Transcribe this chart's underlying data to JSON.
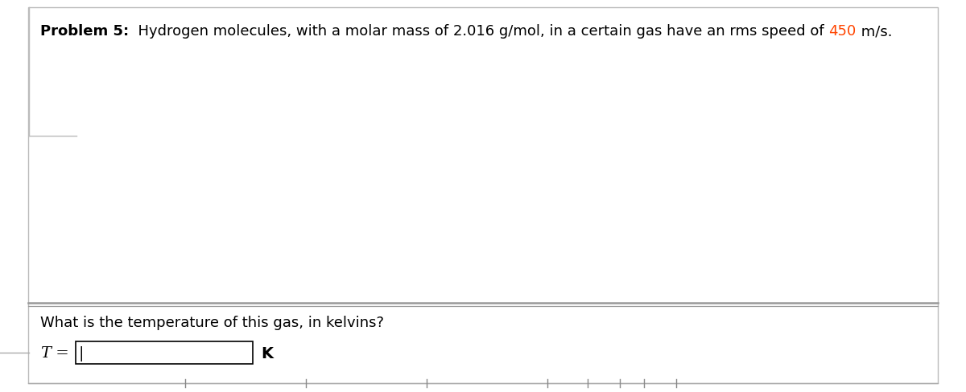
{
  "background_color": "#ffffff",
  "outer_border_color": "#bbbbbb",
  "problem_label": "Problem 5:",
  "problem_text_before_highlight": "  Hydrogen molecules, with a molar mass of 2.016 g/mol, in a certain gas have an rms speed of ",
  "problem_highlight": "450",
  "problem_text_after_highlight": " m/s.",
  "highlight_color": "#ff4500",
  "question_text": "What is the temperature of this gas, in kelvins?",
  "answer_label_italic": "T",
  "answer_label_rest": " = ",
  "answer_unit": "K",
  "text_color": "#000000",
  "font_size_problem": 13,
  "font_size_question": 13,
  "font_size_answer": 14,
  "input_box_color": "#ffffff",
  "input_box_border": "#000000",
  "cursor_color": "#000000"
}
